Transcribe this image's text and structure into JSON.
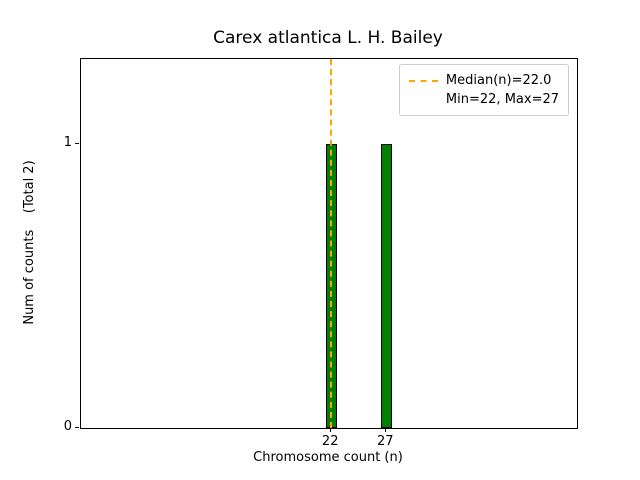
{
  "chart_data": {
    "type": "bar",
    "title": "Carex atlantica L. H. Bailey",
    "xlabel": "Chromosome count (n)",
    "ylabel": "Num of counts    (Total 2)",
    "bars": [
      {
        "x": 22,
        "count": 1
      },
      {
        "x": 27,
        "count": 1
      }
    ],
    "bar_width": 1,
    "bar_color": "#008000",
    "bar_edge_color": "#000000",
    "median": 22.0,
    "min": 22,
    "max": 27,
    "total": 2,
    "median_line_color": "#FFA500",
    "xlim": [
      -0.7,
      44.3
    ],
    "ylim": [
      0,
      1.3
    ],
    "xticks": [
      22,
      27
    ],
    "yticks": [
      0,
      1
    ],
    "grid": false,
    "legend_position": "upper-right",
    "legend": [
      {
        "label": "Median(n)=22.0",
        "handle": "dashed-line"
      },
      {
        "label": "Min=22, Max=27",
        "handle": "none"
      }
    ]
  }
}
